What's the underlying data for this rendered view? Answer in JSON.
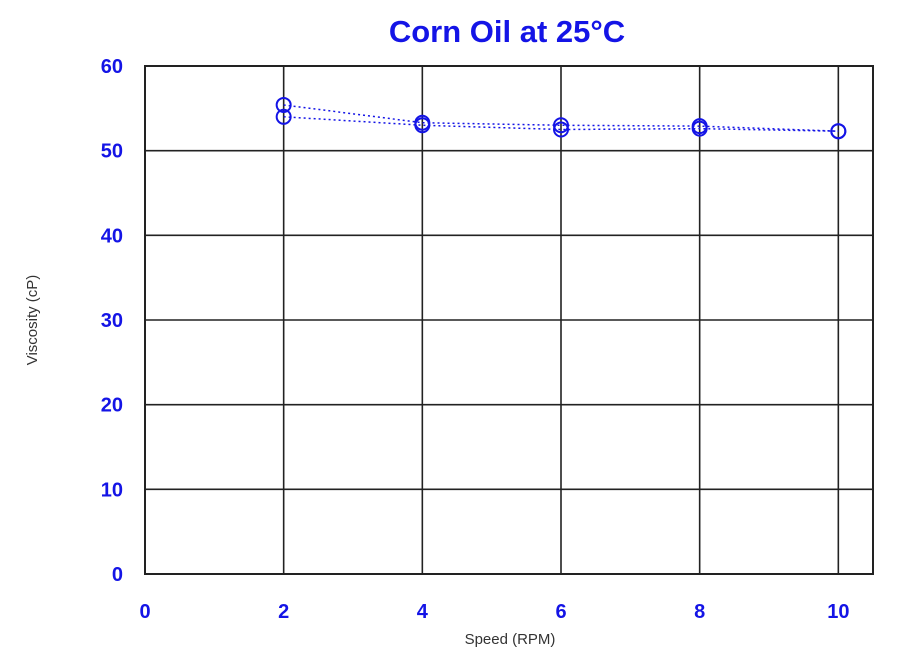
{
  "chart_data": {
    "type": "line",
    "title": "Corn Oil at 25°C",
    "xlabel": "Speed (RPM)",
    "ylabel": "Viscosity (cP)",
    "xlim": [
      0,
      10.5
    ],
    "ylim": [
      0,
      60
    ],
    "xticks": [
      "0",
      "2",
      "4",
      "6",
      "8",
      "10"
    ],
    "yticks": [
      "0",
      "10",
      "20",
      "30",
      "40",
      "50",
      "60"
    ],
    "grid": true,
    "series": [
      {
        "x": [
          2,
          4,
          6,
          8,
          10
        ],
        "values": [
          55.4,
          53.3,
          53.0,
          52.9,
          52.3
        ]
      },
      {
        "x": [
          2,
          4,
          6,
          8,
          10
        ],
        "values": [
          54.0,
          53.0,
          52.5,
          52.6,
          52.3
        ]
      }
    ],
    "colors": {
      "series": "#1414e6",
      "text": "#1414e6",
      "grid": "#000000"
    }
  }
}
